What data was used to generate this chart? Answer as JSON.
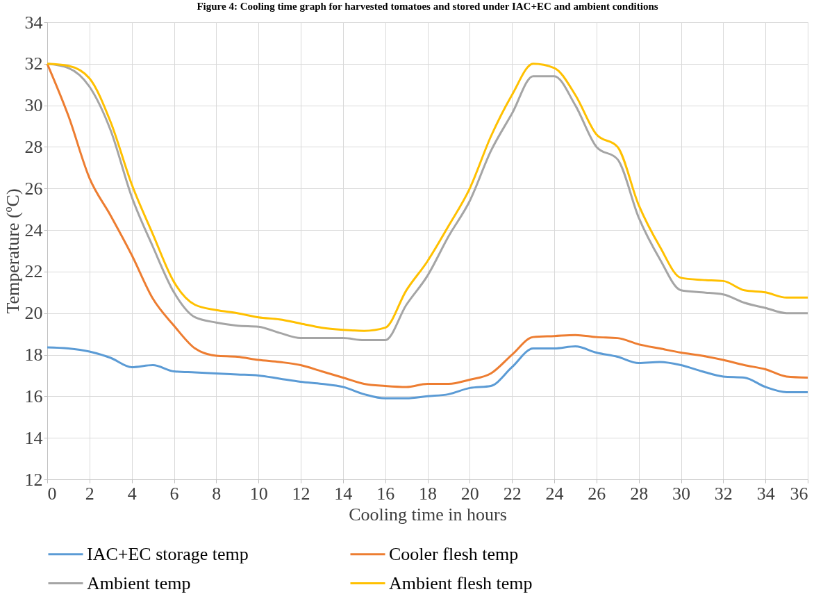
{
  "chart_data": {
    "type": "line",
    "title": "Figure 4: Cooling time graph for harvested tomatoes and stored under IAC+EC and ambient conditions",
    "xlabel": "Cooling time in hours",
    "ylabel": "Temperature (ºC)",
    "x": [
      0,
      1,
      2,
      3,
      4,
      5,
      6,
      7,
      8,
      9,
      10,
      11,
      12,
      13,
      14,
      15,
      16,
      17,
      18,
      19,
      20,
      21,
      22,
      23,
      24,
      25,
      26,
      27,
      28,
      29,
      30,
      31,
      32,
      33,
      34,
      35,
      36
    ],
    "series": [
      {
        "name": "IAC+EC storage temp",
        "color": "#5b9bd5",
        "values": [
          18.35,
          18.3,
          18.15,
          17.85,
          17.4,
          17.5,
          17.2,
          17.15,
          17.1,
          17.05,
          17.0,
          16.85,
          16.7,
          16.6,
          16.45,
          16.1,
          15.9,
          15.9,
          16.0,
          16.1,
          16.4,
          16.5,
          17.4,
          18.3,
          18.3,
          18.4,
          18.1,
          17.9,
          17.6,
          17.65,
          17.5,
          17.2,
          16.95,
          16.9,
          16.45,
          16.2,
          16.2
        ]
      },
      {
        "name": "Cooler flesh temp",
        "color": "#ed7d31",
        "values": [
          32.0,
          29.5,
          26.5,
          24.7,
          22.8,
          20.7,
          19.4,
          18.3,
          17.95,
          17.9,
          17.75,
          17.65,
          17.5,
          17.2,
          16.9,
          16.6,
          16.5,
          16.45,
          16.6,
          16.6,
          16.8,
          17.1,
          18.0,
          18.85,
          18.9,
          18.95,
          18.85,
          18.8,
          18.5,
          18.3,
          18.1,
          17.95,
          17.75,
          17.5,
          17.3,
          16.95,
          16.9
        ]
      },
      {
        "name": "Ambient temp",
        "color": "#a5a5a5",
        "values": [
          32.0,
          31.8,
          30.9,
          28.8,
          25.6,
          23.2,
          21.0,
          19.8,
          19.55,
          19.4,
          19.35,
          19.05,
          18.8,
          18.8,
          18.8,
          18.7,
          18.7,
          20.4,
          21.8,
          23.7,
          25.4,
          27.8,
          29.6,
          31.4,
          31.4,
          30.0,
          28.0,
          27.4,
          24.6,
          22.6,
          21.1,
          21.0,
          20.9,
          20.5,
          20.25,
          20.0,
          20.0
        ]
      },
      {
        "name": "Ambient flesh temp",
        "color": "#ffc000",
        "values": [
          32.0,
          31.9,
          31.3,
          29.2,
          26.2,
          23.8,
          21.5,
          20.4,
          20.15,
          20.0,
          19.8,
          19.7,
          19.5,
          19.3,
          19.2,
          19.15,
          19.3,
          21.1,
          22.5,
          24.2,
          26.0,
          28.5,
          30.5,
          32.0,
          31.8,
          30.5,
          28.6,
          28.0,
          25.2,
          23.2,
          21.7,
          21.6,
          21.55,
          21.1,
          21.0,
          20.75,
          20.75
        ]
      }
    ],
    "xlim": [
      0,
      36
    ],
    "xticks": [
      0,
      2,
      4,
      6,
      8,
      10,
      12,
      14,
      16,
      18,
      20,
      22,
      24,
      26,
      28,
      30,
      32,
      34,
      36
    ],
    "ylim": [
      12,
      34
    ],
    "yticks": [
      12,
      14,
      16,
      18,
      20,
      22,
      24,
      26,
      28,
      30,
      32,
      34
    ],
    "grid": true,
    "legend": "bottom"
  }
}
